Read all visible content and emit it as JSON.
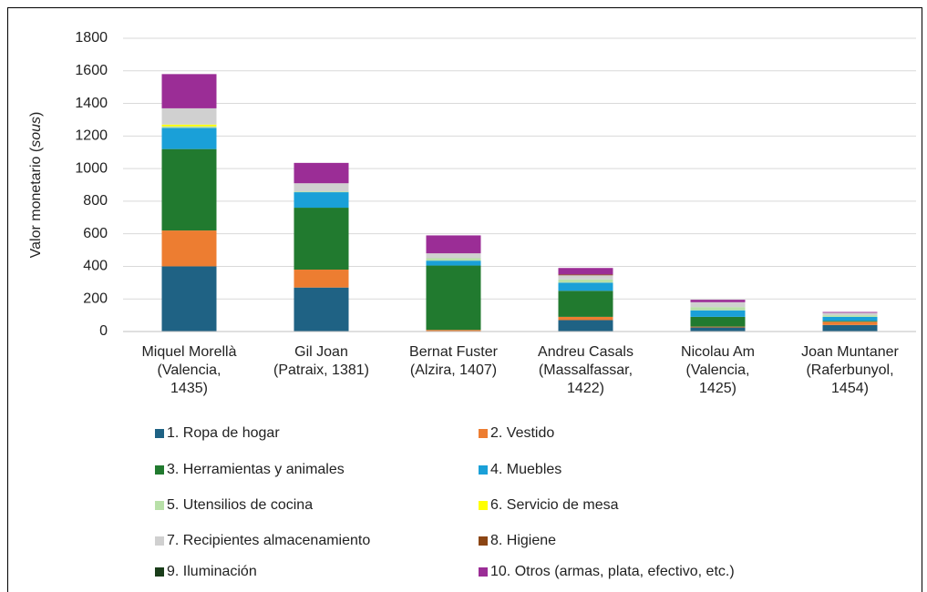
{
  "chart_data": {
    "type": "stacked_bar",
    "y_label": [
      "Valor monetario (",
      "sous",
      ")"
    ],
    "categories": [
      "Miquel Morellà\n(Valencia,\n1435)",
      "Gil Joan\n(Patraix, 1381)",
      "Bernat Fuster\n(Alzira, 1407)",
      "Andreu Casals\n(Massalfassar,\n1422)",
      "Nicolau Am\n(Valencia,\n1425)",
      "Joan Muntaner\n(Raferbunyol,\n1454)"
    ],
    "ylim": [
      0,
      1800
    ],
    "yticks": [
      0,
      200,
      400,
      600,
      800,
      1000,
      1200,
      1400,
      1600,
      1800
    ],
    "grid": true,
    "series": [
      {
        "name": "1. Ropa de hogar",
        "color": "#1f6284",
        "values": [
          400,
          270,
          0,
          70,
          25,
          40
        ]
      },
      {
        "name": "2. Vestido",
        "color": "#ed7d31",
        "values": [
          220,
          110,
          10,
          20,
          5,
          20
        ]
      },
      {
        "name": "3. Herramientas y animales",
        "color": "#217a2f",
        "values": [
          500,
          380,
          395,
          160,
          60,
          5
        ]
      },
      {
        "name": "4. Muebles",
        "color": "#1aa0d8",
        "values": [
          130,
          95,
          30,
          50,
          40,
          25
        ]
      },
      {
        "name": "5. Utensilios de cocina",
        "color": "#b8e0a8",
        "values": [
          10,
          5,
          15,
          20,
          20,
          10
        ]
      },
      {
        "name": "6. Servicio de mesa",
        "color": "#ffff00",
        "values": [
          10,
          0,
          0,
          0,
          0,
          0
        ]
      },
      {
        "name": "7. Recipientes almacenamiento",
        "color": "#d0d0d0",
        "values": [
          100,
          50,
          30,
          25,
          30,
          15
        ]
      },
      {
        "name": "8. Higiene",
        "color": "#8b4513",
        "values": [
          0,
          0,
          0,
          5,
          0,
          0
        ]
      },
      {
        "name": "9. Iluminación",
        "color": "#1a3d1a",
        "values": [
          0,
          0,
          0,
          0,
          0,
          0
        ]
      },
      {
        "name": "10. Otros (armas, plata, efectivo, etc.)",
        "color": "#9b2d96",
        "values": [
          210,
          125,
          110,
          40,
          15,
          5
        ]
      }
    ]
  }
}
